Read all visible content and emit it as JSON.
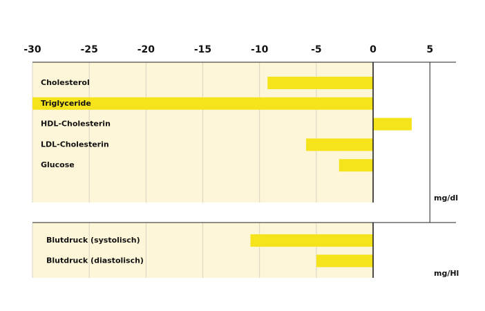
{
  "chart_data": {
    "type": "bar",
    "orientation": "horizontal",
    "color": "#f5e31c",
    "xlim": [
      -30,
      7.3
    ],
    "xticks": [
      -30,
      -25,
      -20,
      -15,
      -10,
      -5,
      0,
      5
    ],
    "panels": [
      {
        "unit": "mg/dl",
        "categories": [
          "Cholesterol",
          "Triglyceride",
          "HDL-Cholesterin",
          "LDL-Cholesterin",
          "Glucose"
        ],
        "values": [
          -9.3,
          -30,
          3.4,
          -5.9,
          -3.0
        ]
      },
      {
        "unit": "mg/Hl",
        "categories": [
          "Blutdruck (systolisch)",
          "Blutdruck (diastolisch)"
        ],
        "values": [
          -10.8,
          -5.0
        ]
      }
    ]
  }
}
